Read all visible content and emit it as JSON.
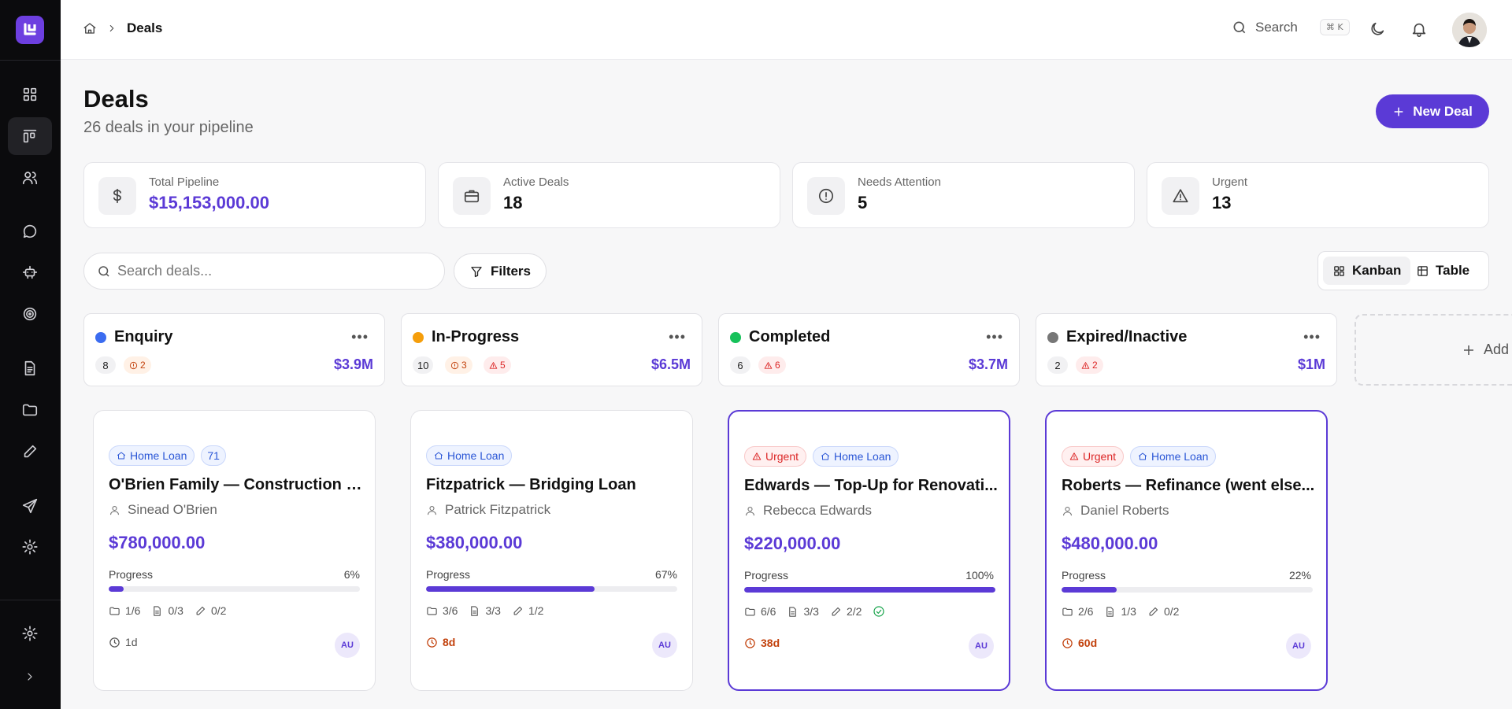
{
  "colors": {
    "accent": "#5b3ad6",
    "enquiry": "#3b6cf0",
    "in_progress": "#f59e0b",
    "completed": "#16c15a",
    "expired": "#777777",
    "urgent": "#dc2626",
    "attention": "#c2410c"
  },
  "sidebar": {
    "items": [
      {
        "icon": "dashboard-icon"
      },
      {
        "icon": "kanban-icon",
        "active": true
      },
      {
        "icon": "users-icon"
      },
      {
        "icon": "chat-icon"
      },
      {
        "icon": "bot-icon"
      },
      {
        "icon": "target-icon"
      },
      {
        "icon": "document-icon"
      },
      {
        "icon": "folder-icon"
      },
      {
        "icon": "pencil-icon"
      },
      {
        "icon": "send-icon"
      },
      {
        "icon": "settings-icon"
      }
    ],
    "footer": [
      {
        "icon": "settings-icon"
      },
      {
        "icon": "chevron-right-icon"
      }
    ]
  },
  "topbar": {
    "breadcrumb_current": "Deals",
    "search_label": "Search",
    "search_shortcut": "⌘ K",
    "icons": [
      "home-icon",
      "moon-icon",
      "bell-icon",
      "avatar"
    ]
  },
  "header": {
    "title": "Deals",
    "subtitle": "26 deals in your pipeline",
    "new_deal_label": "New Deal"
  },
  "stats": [
    {
      "label": "Total Pipeline",
      "value": "$15,153,000.00",
      "icon": "dollar-icon"
    },
    {
      "label": "Active Deals",
      "value": "18",
      "icon": "briefcase-icon"
    },
    {
      "label": "Needs Attention",
      "value": "5",
      "icon": "alert-circle-icon"
    },
    {
      "label": "Urgent",
      "value": "13",
      "icon": "warning-icon"
    }
  ],
  "toolbar": {
    "search_placeholder": "Search deals...",
    "filters_label": "Filters",
    "view_kanban": "Kanban",
    "view_table": "Table",
    "active_view": "Kanban"
  },
  "columns": [
    {
      "name": "Enquiry",
      "count": "8",
      "attention": "2",
      "urgent": "",
      "total": "$3.9M"
    },
    {
      "name": "In-Progress",
      "count": "10",
      "attention": "3",
      "urgent": "5",
      "total": "$6.5M"
    },
    {
      "name": "Completed",
      "count": "6",
      "attention": "",
      "urgent": "6",
      "total": "$3.7M"
    },
    {
      "name": "Expired/Inactive",
      "count": "2",
      "attention": "",
      "urgent": "2",
      "total": "$1M"
    }
  ],
  "add_column_label": "Add",
  "cards": [
    {
      "urgent": false,
      "tag_urgent": "",
      "tag_type": "Home Loan",
      "tag_extra": "71",
      "title": "O'Brien Family — Construction L...",
      "person": "Sinead O'Brien",
      "amount": "$780,000.00",
      "progress_label": "Progress",
      "progress": "6%",
      "progress_value": 6,
      "files": "1/6",
      "docs": "0/3",
      "tasks": "0/2",
      "complete": false,
      "due": "1d",
      "due_late": false,
      "assignee": "AU"
    },
    {
      "urgent": false,
      "tag_urgent": "",
      "tag_type": "Home Loan",
      "tag_extra": "",
      "title": "Fitzpatrick — Bridging Loan",
      "person": "Patrick Fitzpatrick",
      "amount": "$380,000.00",
      "progress_label": "Progress",
      "progress": "67%",
      "progress_value": 67,
      "files": "3/6",
      "docs": "3/3",
      "tasks": "1/2",
      "complete": false,
      "due": "8d",
      "due_late": true,
      "assignee": "AU"
    },
    {
      "urgent": true,
      "tag_urgent": "Urgent",
      "tag_type": "Home Loan",
      "tag_extra": "",
      "title": "Edwards — Top-Up for Renovati...",
      "person": "Rebecca Edwards",
      "amount": "$220,000.00",
      "progress_label": "Progress",
      "progress": "100%",
      "progress_value": 100,
      "files": "6/6",
      "docs": "3/3",
      "tasks": "2/2",
      "complete": true,
      "due": "38d",
      "due_late": true,
      "assignee": "AU"
    },
    {
      "urgent": true,
      "tag_urgent": "Urgent",
      "tag_type": "Home Loan",
      "tag_extra": "",
      "title": "Roberts — Refinance (went else...",
      "person": "Daniel Roberts",
      "amount": "$480,000.00",
      "progress_label": "Progress",
      "progress": "22%",
      "progress_value": 22,
      "files": "2/6",
      "docs": "1/3",
      "tasks": "0/2",
      "complete": false,
      "due": "60d",
      "due_late": true,
      "assignee": "AU"
    }
  ]
}
